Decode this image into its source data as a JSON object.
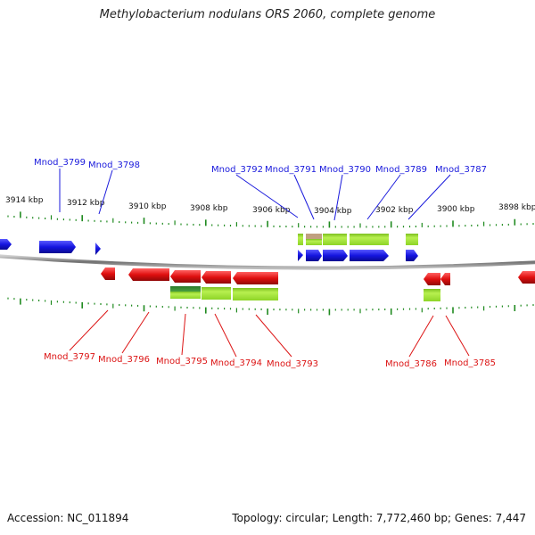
{
  "title": "Methylobacterium nodulans ORS 2060, complete genome",
  "accession": "Accession: NC_011894",
  "topology": "Topology: circular; Length: 7,772,460 bp; Genes: 7,447",
  "colors": {
    "forward_gene": "#1515e0",
    "reverse_gene": "#e01010",
    "feature_green": "#9ee030",
    "backbone": "#888888",
    "tick": "#1f8a1f",
    "label_forward": "#1a1adc",
    "label_reverse": "#dc1414"
  },
  "scale_labels": [
    {
      "text": "3914 kbp"
    },
    {
      "text": "3912 kbp"
    },
    {
      "text": "3910 kbp"
    },
    {
      "text": "3908 kbp"
    },
    {
      "text": "3906 kbp"
    },
    {
      "text": "3904 kbp"
    },
    {
      "text": "3902 kbp"
    },
    {
      "text": "3900 kbp"
    },
    {
      "text": "3898 kbp"
    }
  ],
  "forward_labels": [
    {
      "text": "Mnod_3799"
    },
    {
      "text": "Mnod_3798"
    },
    {
      "text": "Mnod_3792"
    },
    {
      "text": "Mnod_3791"
    },
    {
      "text": "Mnod_3790"
    },
    {
      "text": "Mnod_3789"
    },
    {
      "text": "Mnod_3787"
    }
  ],
  "reverse_labels": [
    {
      "text": "Mnod_3797"
    },
    {
      "text": "Mnod_3796"
    },
    {
      "text": "Mnod_3795"
    },
    {
      "text": "Mnod_3794"
    },
    {
      "text": "Mnod_3793"
    },
    {
      "text": "Mnod_3786"
    },
    {
      "text": "Mnod_3785"
    }
  ]
}
